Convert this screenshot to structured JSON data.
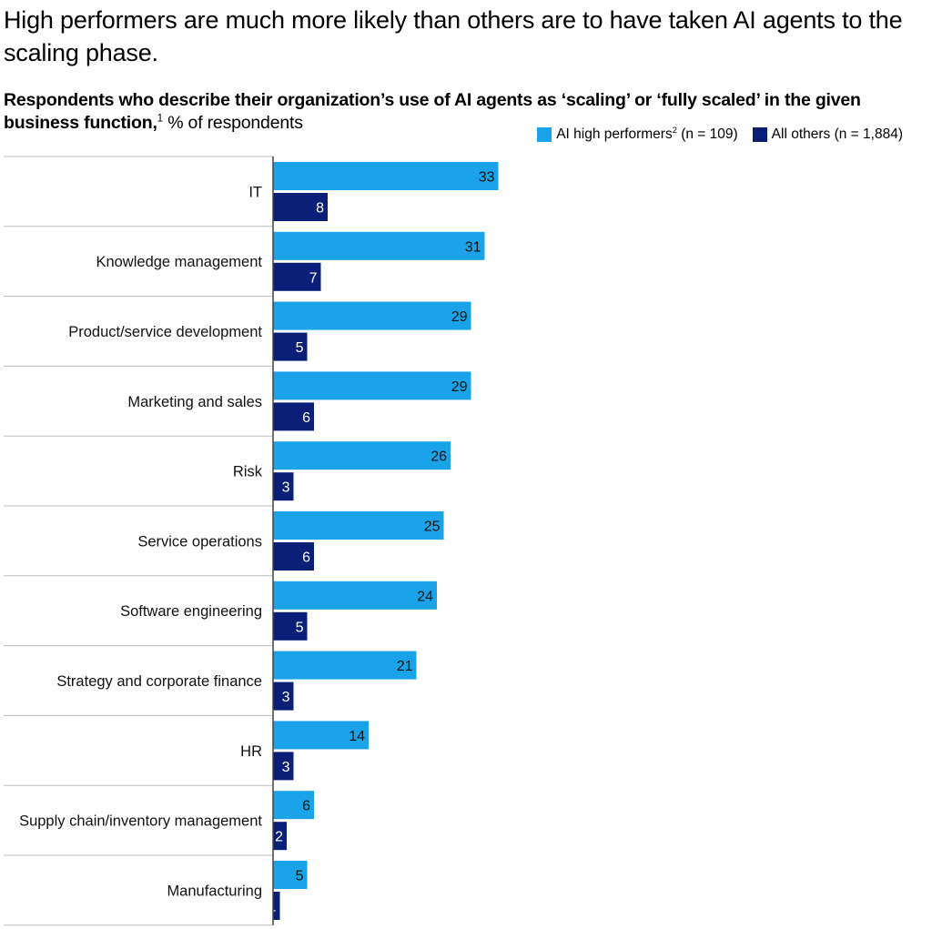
{
  "headline": "High performers are much more likely than others are to have taken AI agents to the scaling phase.",
  "subtitle": {
    "bold_text": "Respondents who describe their organization’s use of AI agents as ‘scaling’ or ‘fully scaled’ in the given business function,",
    "footnote_mark": "1",
    "regular_text": " % of respondents"
  },
  "legend": {
    "high_performers": {
      "label": "AI high performers",
      "footnote_mark": "2",
      "suffix": " (n = 109)"
    },
    "all_others": {
      "label": "All others (n = 1,884)"
    }
  },
  "colors": {
    "high_performers": "#1aa3e8",
    "all_others": "#0a1f78",
    "divider": "#bdbdbd",
    "axis": "#444444"
  },
  "chart_data": {
    "type": "bar",
    "orientation": "horizontal",
    "title": "High performers are much more likely than others are to have taken AI agents to the scaling phase.",
    "xlabel": "% of respondents",
    "ylabel": "",
    "xlim": [
      0,
      70
    ],
    "legend_position": "top-right",
    "categories": [
      "IT",
      "Knowledge management",
      "Product/service development",
      "Marketing and sales",
      "Risk",
      "Service operations",
      "Software engineering",
      "Strategy and corporate finance",
      "HR",
      "Supply chain/inventory management",
      "Manufacturing"
    ],
    "series": [
      {
        "name": "AI high performers (n = 109)",
        "color": "#1aa3e8",
        "values": [
          33,
          31,
          29,
          29,
          26,
          25,
          24,
          21,
          14,
          6,
          5
        ]
      },
      {
        "name": "All others (n = 1,884)",
        "color": "#0a1f78",
        "values": [
          8,
          7,
          5,
          6,
          3,
          6,
          5,
          3,
          3,
          2,
          1
        ]
      }
    ]
  }
}
